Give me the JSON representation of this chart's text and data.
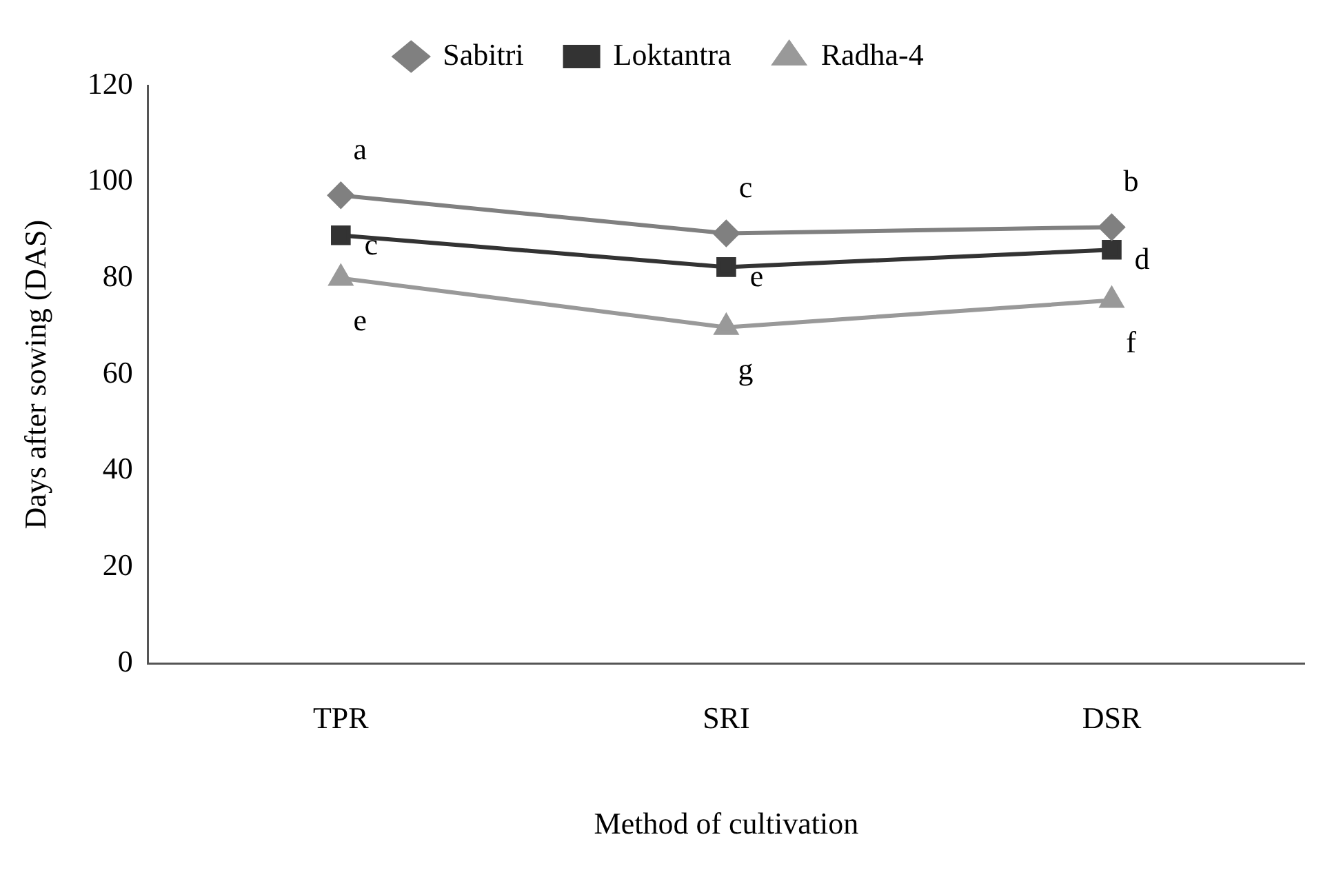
{
  "chart_data": {
    "type": "line",
    "xlabel": "Method of cultivation",
    "ylabel": "Days after sowing (DAS)",
    "categories": [
      "TPR",
      "SRI",
      "DSR"
    ],
    "series": [
      {
        "name": "Sabitri",
        "color": "#808080",
        "marker": "diamond",
        "values": [
          97.2,
          89.3,
          90.6
        ]
      },
      {
        "name": "Loktantra",
        "color": "#333333",
        "marker": "square",
        "values": [
          88.9,
          82.3,
          85.9
        ]
      },
      {
        "name": "Radha-4",
        "color": "#999999",
        "marker": "triangle",
        "values": [
          80,
          69.8,
          75.4
        ]
      }
    ],
    "ylim": [
      0,
      120
    ],
    "yticks": [
      0,
      20,
      40,
      60,
      80,
      100,
      120
    ],
    "grid": false,
    "legend": "top",
    "annotations": [
      {
        "text": "a",
        "x": "TPR",
        "y": 97.2
      },
      {
        "text": "c",
        "x": "SRI",
        "y": 89.3
      },
      {
        "text": "b",
        "x": "DSR",
        "y": 90.6
      },
      {
        "text": "c",
        "x": "TPR",
        "y": 88.9
      },
      {
        "text": "e",
        "x": "SRI",
        "y": 82.3
      },
      {
        "text": "d",
        "x": "DSR",
        "y": 85.9
      },
      {
        "text": "e",
        "x": "TPR",
        "y": 80
      },
      {
        "text": "g",
        "x": "SRI",
        "y": 69.8
      },
      {
        "text": "f",
        "x": "DSR",
        "y": 75.4
      }
    ]
  }
}
